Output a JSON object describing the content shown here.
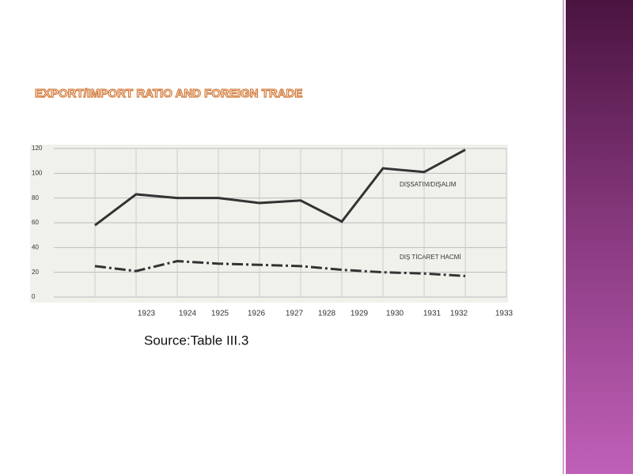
{
  "chart_data": {
    "type": "line",
    "title": "EXPORT/IMPORT RATIO  AND FOREIGN TRADE",
    "categories": [
      "1923",
      "1924",
      "1925",
      "1926",
      "1927",
      "1928",
      "1929",
      "1930",
      "1931",
      "1932",
      "1933"
    ],
    "series": [
      {
        "name": "DIŞSATIM/DIŞALIM",
        "color": "#333333",
        "values": [
          58,
          83,
          80,
          80,
          76,
          78,
          61,
          104,
          101,
          119,
          null
        ]
      },
      {
        "name": "DIŞ TİCARET HACMİ",
        "color": "#333333",
        "values": [
          25,
          21,
          29,
          27,
          26,
          25,
          22,
          20,
          19,
          17,
          null
        ]
      }
    ],
    "ylim": [
      0,
      120
    ],
    "yticks": [
      0,
      20,
      40,
      60,
      80,
      100,
      120
    ],
    "grid": true,
    "source": "Source:Table III.3"
  }
}
